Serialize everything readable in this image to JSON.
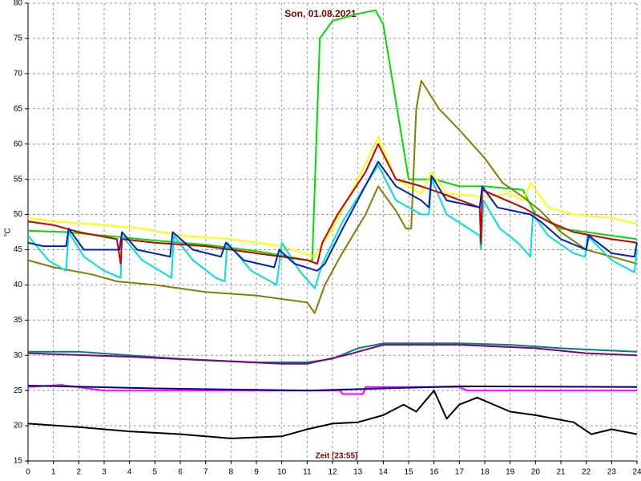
{
  "chart_data": {
    "type": "line",
    "title": "Son, 01.08.2021",
    "ylabel": "°C",
    "xlabel": "Zeit [23:55]",
    "xlim": [
      0,
      24
    ],
    "xticks": [
      0,
      1,
      2,
      3,
      4,
      5,
      6,
      7,
      8,
      9,
      10,
      11,
      12,
      13,
      14,
      15,
      16,
      17,
      18,
      19,
      20,
      21,
      22,
      23,
      24
    ],
    "ylim": [
      15,
      80
    ],
    "yticks": [
      15,
      20,
      25,
      30,
      35,
      40,
      45,
      50,
      55,
      60,
      65,
      70,
      75,
      80
    ],
    "grid": true,
    "series": [
      {
        "color": "#00dd00",
        "x": [
          0,
          1.5,
          3,
          5,
          7,
          9,
          11.2,
          11.5,
          12,
          13,
          13.7,
          14,
          15,
          16,
          17,
          18,
          19.5,
          20,
          21,
          22,
          23,
          24
        ],
        "values": [
          47.7,
          47.5,
          47,
          46.3,
          45.7,
          44.8,
          43.4,
          75,
          77.5,
          78.5,
          79,
          77,
          55,
          55,
          54,
          54,
          53.5,
          50,
          48,
          47.5,
          47,
          46.5
        ]
      },
      {
        "color": "#ffff00",
        "x": [
          0,
          1,
          3,
          4.5,
          6,
          8,
          10,
          11.3,
          12,
          13,
          13.8,
          14.5,
          15.5,
          15.9,
          16.5,
          18,
          19,
          19.5,
          19.8,
          20.5,
          21.5,
          23,
          24
        ],
        "values": [
          49.5,
          49,
          48.5,
          48,
          47,
          46.5,
          45.5,
          44,
          48,
          55,
          61,
          55,
          53,
          56,
          53,
          52.5,
          53,
          52,
          54.5,
          51,
          50,
          49.5,
          48.7
        ]
      },
      {
        "color": "#808000",
        "x": [
          0,
          1,
          2.5,
          3.5,
          5,
          7,
          9,
          10,
          11,
          11.3,
          11.7,
          12.3,
          13.3,
          13.8,
          14.5,
          14.9,
          15.1,
          15.3,
          15.5,
          16.2,
          17,
          18,
          18.7,
          19.5,
          20.2,
          21,
          22,
          23,
          24
        ],
        "values": [
          43.5,
          42.5,
          41.5,
          40.5,
          40,
          39,
          38.5,
          38,
          37.5,
          36,
          40,
          44,
          50,
          54,
          50.5,
          48,
          48,
          65,
          69,
          65,
          62,
          58,
          54.5,
          52.5,
          50.5,
          47.5,
          45,
          44,
          43
        ]
      },
      {
        "color": "#00e0e0",
        "x": [
          0,
          0.8,
          1.5,
          1.6,
          2.2,
          3,
          3.65,
          3.7,
          4.5,
          5.2,
          5.65,
          5.75,
          6.5,
          7.4,
          7.75,
          7.85,
          8.8,
          9.8,
          10,
          10.7,
          11.3,
          11.6,
          12.4,
          13.8,
          14.5,
          15.5,
          15.8,
          15.9,
          16.5,
          17.8,
          17.85,
          17.95,
          18.6,
          19.3,
          19.8,
          19.9,
          20.5,
          21.5,
          21.95,
          22.05,
          23,
          23.9,
          24
        ],
        "values": [
          47,
          43.5,
          42,
          47.5,
          44,
          42,
          41,
          47,
          43.5,
          42,
          41,
          47,
          43.5,
          41,
          40.5,
          46,
          42,
          40,
          46,
          42,
          39.5,
          43,
          49,
          57,
          52,
          50,
          50,
          55,
          50,
          47,
          45,
          52,
          48,
          46,
          44,
          50,
          47,
          44.5,
          44,
          47,
          43.5,
          41.8,
          45
        ]
      },
      {
        "color": "#cc0000",
        "x": [
          0,
          1,
          2,
          3.5,
          3.65,
          3.7,
          5,
          7,
          9,
          11,
          11.4,
          11.6,
          12.2,
          13.3,
          13.8,
          14.5,
          15.5,
          16.3,
          17.8,
          17.85,
          17.9,
          19.5,
          20.5,
          21.5,
          23,
          24
        ],
        "values": [
          49,
          48.5,
          47.5,
          46.5,
          43,
          46.5,
          46,
          45.5,
          44.5,
          43.5,
          43,
          46,
          50,
          56,
          60,
          55,
          54,
          53,
          51,
          45.8,
          53.5,
          51,
          49,
          47.5,
          46.5,
          46
        ]
      },
      {
        "color": "#0020c0",
        "x": [
          0,
          0.6,
          1.5,
          1.6,
          2.2,
          3.6,
          3.7,
          4.3,
          5.6,
          5.7,
          6.5,
          7.6,
          7.8,
          8.5,
          9.7,
          9.9,
          10.5,
          11.4,
          11.7,
          12.4,
          13.8,
          14.5,
          15.5,
          15.8,
          15.9,
          16.5,
          17.8,
          17.9,
          18.5,
          19.8,
          20.2,
          21,
          22,
          22.1,
          23,
          23.9,
          24
        ],
        "values": [
          46,
          45.5,
          45.5,
          48,
          45,
          45,
          47.5,
          45,
          44,
          47.5,
          45,
          44,
          46,
          43.5,
          42.5,
          45,
          43,
          42,
          43,
          48,
          57.5,
          54,
          52,
          51,
          55.5,
          52,
          51,
          54,
          51,
          50,
          49,
          46.5,
          45,
          47,
          44.5,
          44,
          46
        ]
      },
      {
        "color": "#008080",
        "x": [
          0,
          2,
          4,
          6,
          9,
          11,
          12,
          13,
          14,
          17,
          19,
          21,
          24
        ],
        "values": [
          30.5,
          30.5,
          30,
          29.5,
          29,
          29,
          29.5,
          31,
          31.7,
          31.7,
          31.5,
          31,
          30.5
        ]
      },
      {
        "color": "#800080",
        "x": [
          0,
          4,
          7,
          10,
          11,
          12.5,
          14,
          17,
          20,
          22,
          24
        ],
        "values": [
          30.3,
          29.8,
          29.3,
          28.8,
          28.8,
          30,
          31.5,
          31.5,
          31,
          30.3,
          30
        ]
      },
      {
        "color": "#ff00ff",
        "x": [
          0,
          1.3,
          3,
          12.3,
          12.4,
          13.2,
          13.3,
          17,
          17.3,
          24
        ],
        "values": [
          25.5,
          25.8,
          25,
          25,
          24.5,
          24.5,
          25.5,
          25.5,
          25,
          25
        ]
      },
      {
        "color": "#000080",
        "x": [
          0,
          5,
          11,
          14,
          17,
          24
        ],
        "values": [
          25.7,
          25.3,
          25,
          25.3,
          25.6,
          25.5
        ]
      },
      {
        "color": "#000000",
        "x": [
          0,
          2,
          4,
          6,
          8,
          10,
          11,
          12,
          13,
          14,
          14.8,
          15.3,
          16,
          16.5,
          17,
          17.7,
          19,
          20,
          21.5,
          22.2,
          23,
          24
        ],
        "values": [
          20.3,
          19.8,
          19.2,
          18.8,
          18.2,
          18.5,
          19.5,
          20.3,
          20.5,
          21.5,
          23,
          22,
          25,
          21,
          23,
          24,
          22,
          21.5,
          20.5,
          18.8,
          19.5,
          18.8
        ]
      }
    ]
  }
}
